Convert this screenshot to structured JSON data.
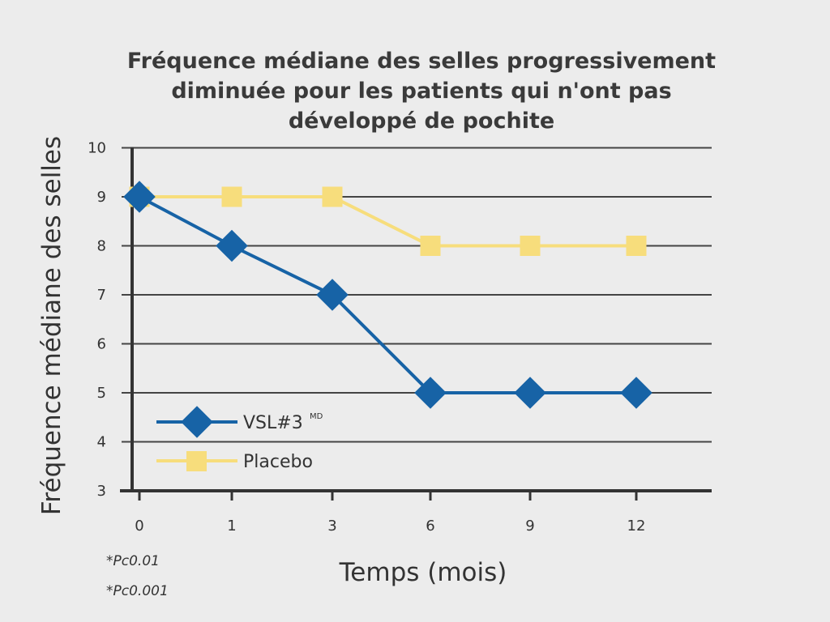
{
  "chart_data": {
    "type": "line",
    "title_lines": [
      "Fréquence médiane des selles progressivement",
      "diminuée pour les patients qui n'ont pas",
      "développé de pochite"
    ],
    "xlabel": "Temps (mois)",
    "ylabel": "Fréquence médiane des selles",
    "categories": [
      "0",
      "1",
      "3",
      "6",
      "9",
      "12"
    ],
    "yticks": [
      10,
      9,
      8,
      7,
      6,
      5,
      4,
      3
    ],
    "ylim": [
      3,
      10
    ],
    "grid": true,
    "legend_position": "bottom-left",
    "series": [
      {
        "name": "VSL#3",
        "name_superscript": "MD",
        "marker": "diamond",
        "color": "#1763a6",
        "values": [
          9,
          8,
          7,
          5,
          5,
          5
        ]
      },
      {
        "name": "Placebo",
        "marker": "square",
        "color": "#f7dd7c",
        "values": [
          9,
          9,
          9,
          8,
          8,
          8
        ]
      }
    ],
    "notes": [
      "*Pc0.01",
      "*Pc0.001"
    ]
  }
}
